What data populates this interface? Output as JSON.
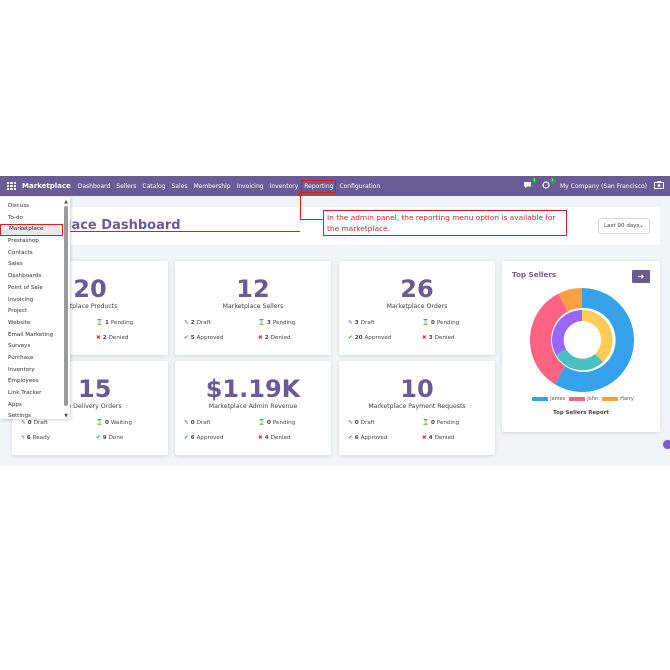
{
  "navbar": {
    "brand": "Marketplace",
    "items": [
      {
        "label": "Dashboard"
      },
      {
        "label": "Sellers"
      },
      {
        "label": "Catalog"
      },
      {
        "label": "Sales"
      },
      {
        "label": "Membership"
      },
      {
        "label": "Invoicing"
      },
      {
        "label": "Inventory"
      },
      {
        "label": "Reporting",
        "active": true
      },
      {
        "label": "Configuration"
      }
    ],
    "chat_badge": "1",
    "activity_badge": "1",
    "company": "My Company (San Francisco)"
  },
  "apps_menu": {
    "items": [
      "Discuss",
      "To-do",
      "Marketplace",
      "Prestashop",
      "Contacts",
      "Sales",
      "Dashboards",
      "Point of Sale",
      "Invoicing",
      "Project",
      "Website",
      "Email Marketing",
      "Surveys",
      "Purchase",
      "Inventory",
      "Employees",
      "Link Tracker",
      "Apps",
      "Settings"
    ],
    "highlighted": "Marketplace"
  },
  "header": {
    "title": "lace Dashboard",
    "period": "Last 90 days"
  },
  "annotation": {
    "text": "In the admin panel, the reporting menu option is available for the marketplace."
  },
  "cards": [
    {
      "value": "20",
      "label": "ketplace Products",
      "stats": [
        {
          "count": "1",
          "text": "Pending",
          "icon": "hourglass-icon"
        },
        {
          "count": "2",
          "text": "Denied",
          "icon": "denied-icon"
        }
      ]
    },
    {
      "value": "12",
      "label": "Marketplace Sellers",
      "stats": [
        {
          "count": "2",
          "text": "Draft",
          "icon": "edit-icon"
        },
        {
          "count": "3",
          "text": "Pending",
          "icon": "hourglass-icon"
        },
        {
          "count": "5",
          "text": "Approved",
          "icon": "check-icon"
        },
        {
          "count": "2",
          "text": "Denied",
          "icon": "denied-icon"
        }
      ]
    },
    {
      "value": "26",
      "label": "Marketplace Orders",
      "stats": [
        {
          "count": "3",
          "text": "Draft",
          "icon": "edit-icon"
        },
        {
          "count": "0",
          "text": "Pending",
          "icon": "hourglass-icon"
        },
        {
          "count": "20",
          "text": "Approved",
          "icon": "check-icon"
        },
        {
          "count": "3",
          "text": "Denied",
          "icon": "denied-icon"
        }
      ]
    },
    {
      "value": "15",
      "label": "lace Delivery Orders",
      "stats": [
        {
          "count": "0",
          "text": "Draft",
          "icon": "edit-icon"
        },
        {
          "count": "0",
          "text": "Waiting",
          "icon": "hourglass-icon"
        },
        {
          "count": "6",
          "text": "Ready",
          "icon": "bolt-icon"
        },
        {
          "count": "9",
          "text": "Done",
          "icon": "check-icon"
        }
      ]
    },
    {
      "value": "$1.19K",
      "label": "Marketplace Admin Revenue",
      "stats": [
        {
          "count": "0",
          "text": "Draft",
          "icon": "edit-icon"
        },
        {
          "count": "0",
          "text": "Pending",
          "icon": "hourglass-icon"
        },
        {
          "count": "6",
          "text": "Approved",
          "icon": "check-icon"
        },
        {
          "count": "4",
          "text": "Denied",
          "icon": "denied-icon"
        }
      ]
    },
    {
      "value": "10",
      "label": "Marketplace Payment Requests",
      "stats": [
        {
          "count": "0",
          "text": "Draft",
          "icon": "edit-icon"
        },
        {
          "count": "0",
          "text": "Pending",
          "icon": "hourglass-icon"
        },
        {
          "count": "6",
          "text": "Approved",
          "icon": "check-icon"
        },
        {
          "count": "4",
          "text": "Denied",
          "icon": "denied-icon"
        }
      ]
    }
  ],
  "top_sellers": {
    "title": "Top Sellers",
    "caption": "Top Sellers Report",
    "legend": [
      {
        "name": "James",
        "color": "#36a2eb"
      },
      {
        "name": "John",
        "color": "#ff6384"
      },
      {
        "name": "Harry",
        "color": "#ff9f40"
      }
    ]
  },
  "colors": {
    "brand": "#6b5b95",
    "highlight_red": "#d32222"
  }
}
